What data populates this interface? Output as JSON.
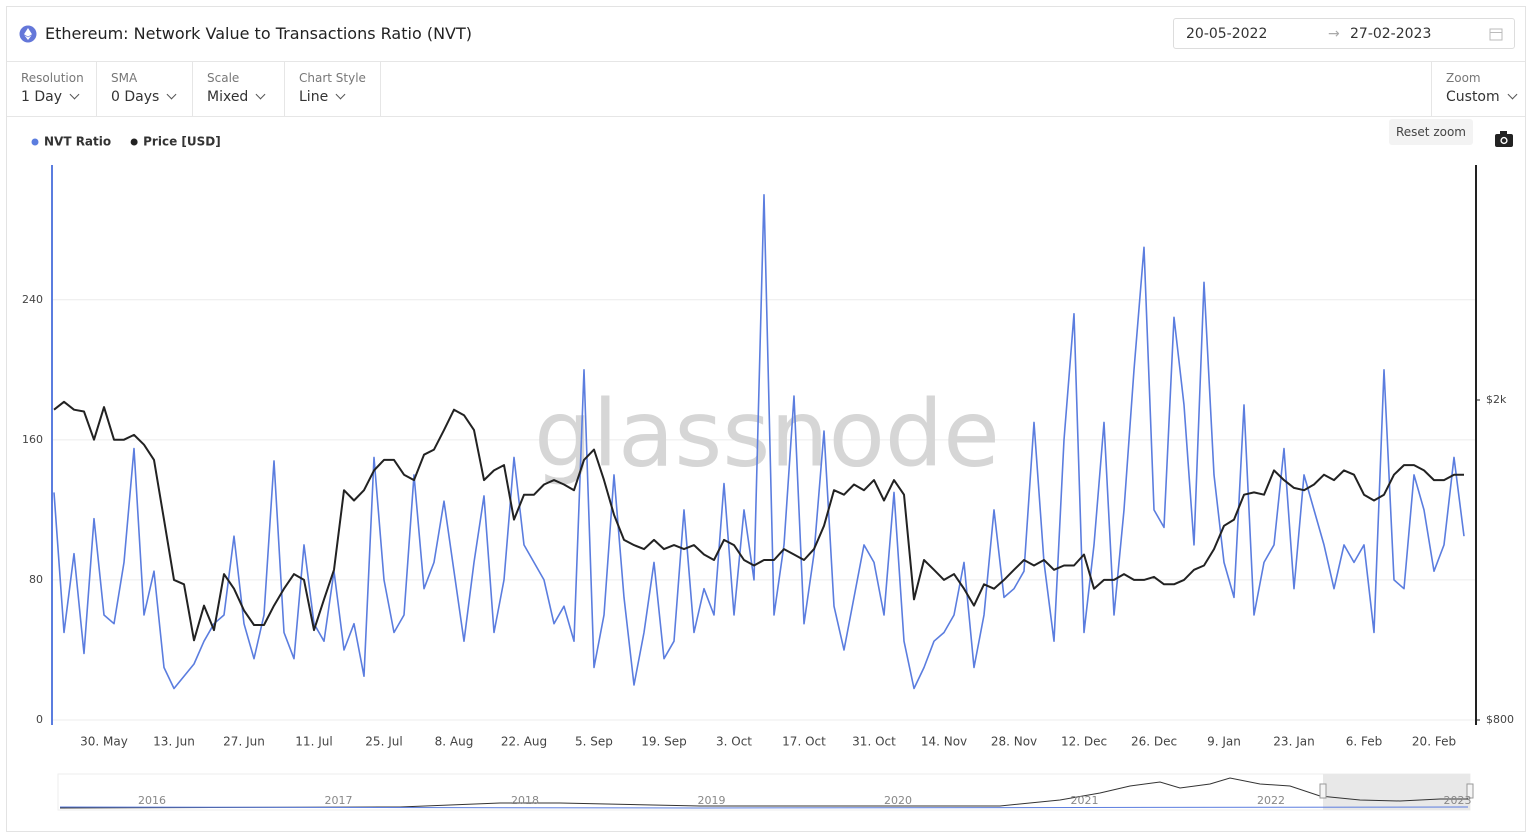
{
  "header": {
    "title": "Ethereum: Network Value to Transactions Ratio (NVT)",
    "date_from": "20-05-2022",
    "date_to": "27-02-2023"
  },
  "controls": [
    {
      "label": "Resolution",
      "value": "1 Day"
    },
    {
      "label": "SMA",
      "value": "0 Days"
    },
    {
      "label": "Scale",
      "value": "Mixed"
    },
    {
      "label": "Chart Style",
      "value": "Line"
    }
  ],
  "zoom": {
    "label": "Zoom",
    "value": "Custom"
  },
  "reset_zoom": "Reset zoom",
  "watermark": "glassnode",
  "navigator_years": [
    "2016",
    "2017",
    "2018",
    "2019",
    "2020",
    "2021",
    "2022",
    "2023"
  ],
  "chart_data": {
    "type": "line",
    "categories": [
      null,
      null,
      null,
      null,
      null,
      "30. May",
      null,
      null,
      null,
      null,
      null,
      null,
      "13. Jun",
      null,
      null,
      null,
      null,
      null,
      null,
      "27. Jun",
      null,
      null,
      null,
      null,
      null,
      null,
      "11. Jul",
      null,
      null,
      null,
      null,
      null,
      null,
      "25. Jul",
      null,
      null,
      null,
      null,
      null,
      null,
      "8. Aug",
      null,
      null,
      null,
      null,
      null,
      null,
      "22. Aug",
      null,
      null,
      null,
      null,
      null,
      null,
      "5. Sep",
      null,
      null,
      null,
      null,
      null,
      null,
      "19. Sep",
      null,
      null,
      null,
      null,
      null,
      null,
      "3. Oct",
      null,
      null,
      null,
      null,
      null,
      null,
      "17. Oct",
      null,
      null,
      null,
      null,
      null,
      null,
      "31. Oct",
      null,
      null,
      null,
      null,
      null,
      null,
      "14. Nov",
      null,
      null,
      null,
      null,
      null,
      null,
      "28. Nov",
      null,
      null,
      null,
      null,
      null,
      null,
      "12. Dec",
      null,
      null,
      null,
      null,
      null,
      null,
      "26. Dec",
      null,
      null,
      null,
      null,
      null,
      null,
      "9. Jan",
      null,
      null,
      null,
      null,
      null,
      null,
      "23. Jan",
      null,
      null,
      null,
      null,
      null,
      null,
      "6. Feb",
      null,
      null,
      null,
      null,
      null,
      null,
      "20. Feb",
      null,
      null,
      null
    ],
    "series": [
      {
        "name": "NVT Ratio",
        "color": "#5b7ddf",
        "values": [
          130,
          50,
          95,
          38,
          115,
          60,
          55,
          90,
          155,
          60,
          85,
          30,
          18,
          25,
          32,
          45,
          55,
          60,
          105,
          55,
          35,
          60,
          148,
          50,
          35,
          100,
          55,
          45,
          85,
          40,
          55,
          25,
          150,
          80,
          50,
          60,
          140,
          75,
          90,
          125,
          85,
          45,
          90,
          128,
          50,
          80,
          150,
          100,
          90,
          80,
          55,
          65,
          45,
          200,
          30,
          60,
          140,
          70,
          20,
          50,
          90,
          35,
          45,
          120,
          50,
          75,
          60,
          135,
          60,
          120,
          80,
          300,
          60,
          100,
          185,
          55,
          95,
          165,
          65,
          40,
          70,
          100,
          90,
          60,
          130,
          45,
          18,
          30,
          45,
          50,
          60,
          90,
          30,
          60,
          120,
          70,
          75,
          85,
          170,
          90,
          45,
          160,
          232,
          50,
          100,
          170,
          60,
          120,
          200,
          270,
          120,
          110,
          230,
          180,
          100,
          250,
          140,
          90,
          70,
          180,
          60,
          90,
          100,
          155,
          75,
          140,
          120,
          100,
          75,
          100,
          90,
          100,
          50,
          200,
          80,
          75,
          140,
          120,
          85,
          100,
          150,
          105
        ]
      },
      {
        "name": "Price [USD]",
        "color": "#222222",
        "axis": "y2",
        "values": [
          1945,
          1990,
          1945,
          1935,
          1785,
          1960,
          1785,
          1785,
          1810,
          1760,
          1685,
          1420,
          1195,
          1180,
          1005,
          1110,
          1035,
          1215,
          1165,
          1095,
          1050,
          1050,
          1110,
          1165,
          1215,
          1195,
          1035,
          1130,
          1230,
          1545,
          1500,
          1545,
          1635,
          1685,
          1685,
          1615,
          1590,
          1710,
          1735,
          1835,
          1945,
          1915,
          1835,
          1590,
          1635,
          1660,
          1420,
          1525,
          1525,
          1570,
          1590,
          1570,
          1545,
          1685,
          1735,
          1590,
          1440,
          1340,
          1320,
          1305,
          1340,
          1305,
          1320,
          1305,
          1320,
          1285,
          1265,
          1340,
          1320,
          1265,
          1245,
          1265,
          1265,
          1305,
          1285,
          1265,
          1305,
          1395,
          1545,
          1525,
          1570,
          1545,
          1590,
          1500,
          1590,
          1525,
          1130,
          1265,
          1230,
          1195,
          1215,
          1165,
          1110,
          1180,
          1165,
          1195,
          1230,
          1265,
          1245,
          1265,
          1230,
          1245,
          1245,
          1285,
          1165,
          1195,
          1195,
          1215,
          1195,
          1195,
          1205,
          1180,
          1180,
          1195,
          1230,
          1245,
          1305,
          1395,
          1420,
          1525,
          1535,
          1525,
          1635,
          1590,
          1555,
          1545,
          1570,
          1615,
          1590,
          1635,
          1615,
          1525,
          1500,
          1525,
          1615,
          1660,
          1660,
          1635,
          1590,
          1590,
          1615,
          1615
        ]
      }
    ],
    "ylim": [
      0,
      317
    ],
    "yticks": [
      0,
      80,
      160,
      240
    ],
    "y2lim": [
      800,
      3920
    ],
    "y2ticks": [
      {
        "value": 800,
        "label": "$800"
      },
      {
        "value": 2000,
        "label": "$2k"
      }
    ],
    "y2log": true,
    "grid": true,
    "legend": "top-left"
  }
}
